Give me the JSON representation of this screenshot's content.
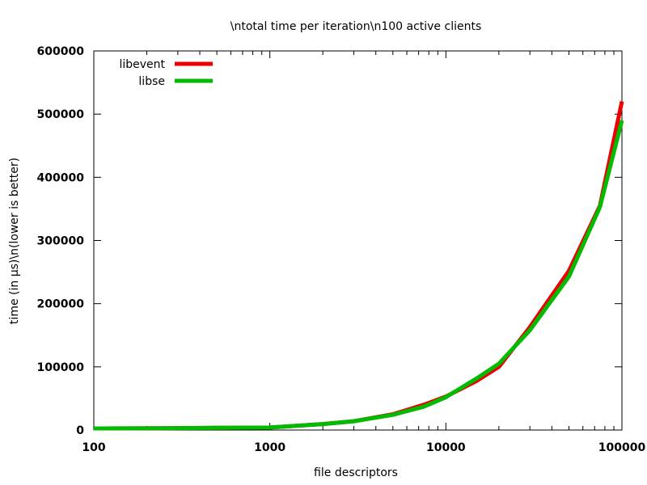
{
  "chart_data": {
    "type": "line",
    "title": "\\ntotal time per iteration\\n100 active clients",
    "xlabel": "file descriptors",
    "ylabel": "time (in µs)\\n(lower is better)",
    "x_scale": "log",
    "xlim": [
      100,
      100000
    ],
    "ylim": [
      0,
      600000
    ],
    "x_ticks": [
      100,
      1000,
      10000,
      100000
    ],
    "x_tick_labels": [
      "100",
      "1000",
      "10000",
      "100000"
    ],
    "y_ticks": [
      0,
      100000,
      200000,
      300000,
      400000,
      500000,
      600000
    ],
    "y_tick_labels": [
      "0",
      "100000",
      "200000",
      "300000",
      "400000",
      "500000",
      "600000"
    ],
    "grid": false,
    "legend_position": "top-left",
    "x": [
      100,
      250,
      500,
      1000,
      2000,
      3000,
      5000,
      7500,
      10000,
      15000,
      20000,
      30000,
      50000,
      75000,
      100000
    ],
    "series": [
      {
        "name": "libevent",
        "color": "#ee0000",
        "values": [
          2500,
          3000,
          3500,
          4000,
          9500,
          14000,
          25000,
          40000,
          53000,
          78000,
          100000,
          163000,
          252000,
          355000,
          520000
        ]
      },
      {
        "name": "libse",
        "color": "#00bb00",
        "values": [
          2500,
          3000,
          3500,
          4000,
          9500,
          14000,
          24000,
          37000,
          52000,
          82000,
          105000,
          158000,
          243000,
          353000,
          490000
        ]
      }
    ]
  }
}
